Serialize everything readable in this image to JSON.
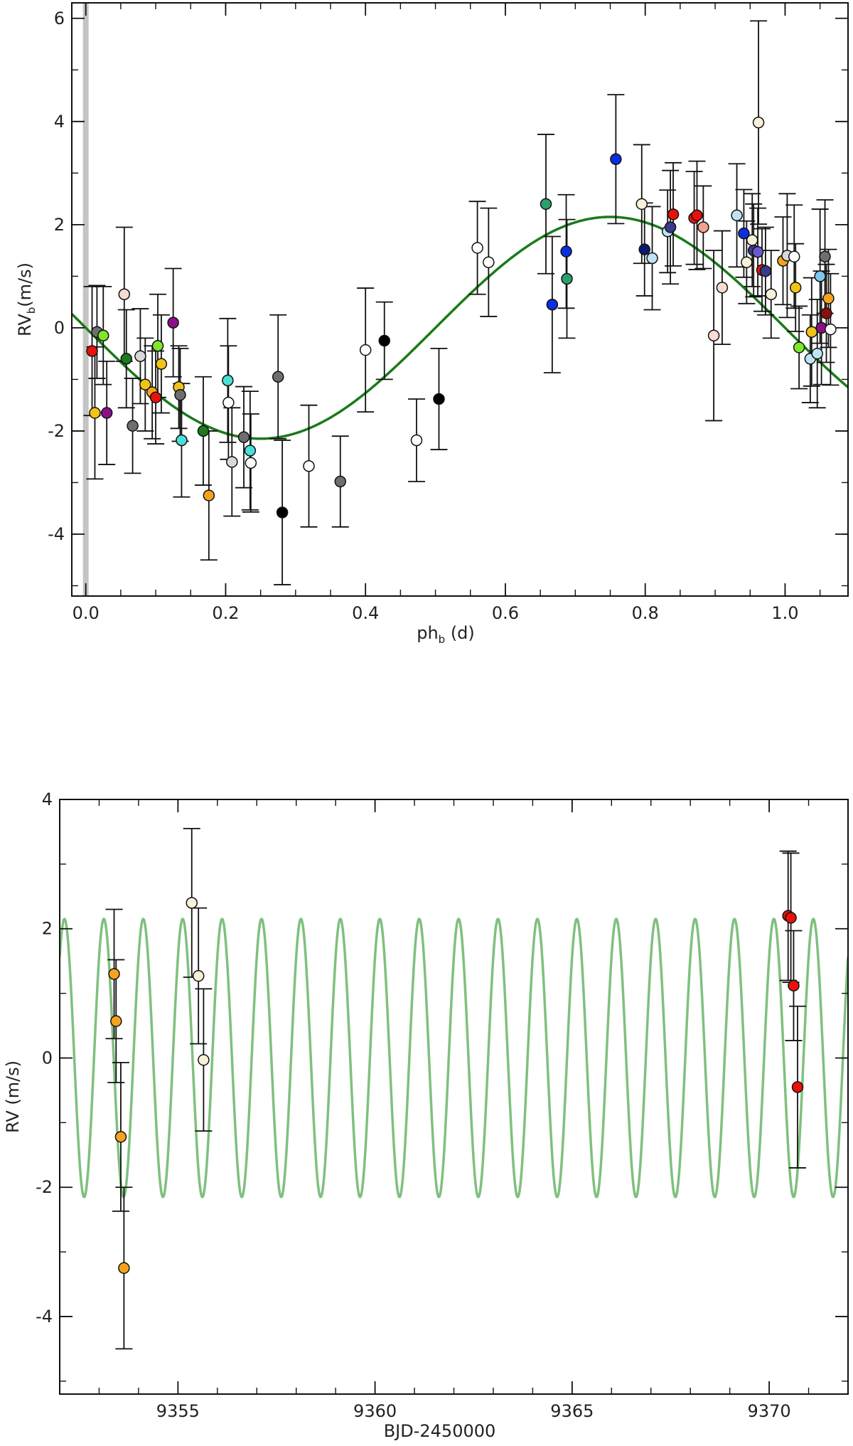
{
  "chart_data": [
    {
      "type": "scatter",
      "ylabel_main": "RV",
      "ylabel_sub": "b",
      "ylabel_unit": "(m/s)",
      "xlabel_main": "ph",
      "xlabel_sub": "b",
      "xlabel_unit": " (d)",
      "xlim": [
        -0.02,
        1.09
      ],
      "ylim": [
        -5.2,
        6.3
      ],
      "xticks": [
        0.0,
        0.2,
        0.4,
        0.6,
        0.8,
        1.0
      ],
      "xtick_labels": [
        "0.0",
        "0.2",
        "0.4",
        "0.6",
        "0.8",
        "1.0"
      ],
      "yticks": [
        -4,
        -2,
        0,
        2,
        4,
        6
      ],
      "ytick_labels": [
        "-4",
        "-2",
        "0",
        "2",
        "4",
        "6"
      ],
      "shaded_band_x": 0.0,
      "model": {
        "amplitude": 2.15,
        "period": 1.0,
        "phase_zero": 0.0,
        "color": "#1a7a1a"
      },
      "points": [
        {
          "x": 0.009,
          "y": -0.45,
          "err": 1.25,
          "color": "#e8120b"
        },
        {
          "x": 0.013,
          "y": -1.65,
          "err": 1.28,
          "color": "#f2c418"
        },
        {
          "x": 0.016,
          "y": -0.08,
          "err": 0.9,
          "color": "#6e6e6e"
        },
        {
          "x": 0.025,
          "y": -0.15,
          "err": 0.95,
          "color": "#7fe62a"
        },
        {
          "x": 0.03,
          "y": -1.65,
          "err": 1.0,
          "color": "#8b0f8b"
        },
        {
          "x": 0.055,
          "y": 0.65,
          "err": 1.3,
          "color": "#f8dcd4"
        },
        {
          "x": 0.058,
          "y": -0.6,
          "err": 0.95,
          "color": "#1e7a1e"
        },
        {
          "x": 0.067,
          "y": -1.9,
          "err": 0.92,
          "color": "#6e6e6e"
        },
        {
          "x": 0.078,
          "y": -0.55,
          "err": 0.92,
          "color": "#d8d8d8"
        },
        {
          "x": 0.085,
          "y": -1.1,
          "err": 0.9,
          "color": "#f2c418"
        },
        {
          "x": 0.095,
          "y": -1.25,
          "err": 0.9,
          "color": "#f5a21e"
        },
        {
          "x": 0.1,
          "y": -1.35,
          "err": 0.9,
          "color": "#e8120b"
        },
        {
          "x": 0.103,
          "y": -0.35,
          "err": 1.0,
          "color": "#7fe62a"
        },
        {
          "x": 0.108,
          "y": -0.7,
          "err": 0.95,
          "color": "#f2c418"
        },
        {
          "x": 0.125,
          "y": 0.1,
          "err": 1.05,
          "color": "#8b0f8b"
        },
        {
          "x": 0.133,
          "y": -1.15,
          "err": 0.8,
          "color": "#f2c418"
        },
        {
          "x": 0.135,
          "y": -1.3,
          "err": 0.9,
          "color": "#6e6e6e"
        },
        {
          "x": 0.137,
          "y": -2.18,
          "err": 1.1,
          "color": "#48e0d8"
        },
        {
          "x": 0.168,
          "y": -2.0,
          "err": 1.05,
          "color": "#1e7a1e"
        },
        {
          "x": 0.176,
          "y": -3.25,
          "err": 1.25,
          "color": "#f5a21e"
        },
        {
          "x": 0.203,
          "y": -1.02,
          "err": 1.2,
          "color": "#48e0d8"
        },
        {
          "x": 0.204,
          "y": -1.45,
          "err": 1.1,
          "color": "#ffffff"
        },
        {
          "x": 0.209,
          "y": -2.6,
          "err": 1.05,
          "color": "#d8d8d8"
        },
        {
          "x": 0.226,
          "y": -2.12,
          "err": 0.98,
          "color": "#6e6e6e"
        },
        {
          "x": 0.235,
          "y": -2.38,
          "err": 1.15,
          "color": "#48e0d8"
        },
        {
          "x": 0.236,
          "y": -2.62,
          "err": 0.95,
          "color": "#ffffff"
        },
        {
          "x": 0.275,
          "y": -0.95,
          "err": 1.2,
          "color": "#6e6e6e"
        },
        {
          "x": 0.281,
          "y": -3.58,
          "err": 1.4,
          "color": "#000000"
        },
        {
          "x": 0.319,
          "y": -2.68,
          "err": 1.18,
          "color": "#ffffff"
        },
        {
          "x": 0.364,
          "y": -2.98,
          "err": 0.88,
          "color": "#6e6e6e"
        },
        {
          "x": 0.4,
          "y": -0.43,
          "err": 1.2,
          "color": "#ffffff"
        },
        {
          "x": 0.427,
          "y": -0.25,
          "err": 0.75,
          "color": "#000000"
        },
        {
          "x": 0.473,
          "y": -2.18,
          "err": 0.8,
          "color": "#ffffff"
        },
        {
          "x": 0.505,
          "y": -1.38,
          "err": 0.98,
          "color": "#000000"
        },
        {
          "x": 0.56,
          "y": 1.55,
          "err": 0.9,
          "color": "#ffffff"
        },
        {
          "x": 0.576,
          "y": 1.27,
          "err": 1.05,
          "color": "#ffffff"
        },
        {
          "x": 0.658,
          "y": 2.4,
          "err": 1.35,
          "color": "#2e9e6e"
        },
        {
          "x": 0.667,
          "y": 0.45,
          "err": 1.32,
          "color": "#0a2ee0"
        },
        {
          "x": 0.687,
          "y": 1.48,
          "err": 1.1,
          "color": "#0a2ee0"
        },
        {
          "x": 0.688,
          "y": 0.95,
          "err": 1.15,
          "color": "#2e9e6e"
        },
        {
          "x": 0.758,
          "y": 3.27,
          "err": 1.25,
          "color": "#0a2ee0"
        },
        {
          "x": 0.795,
          "y": 2.4,
          "err": 1.15,
          "color": "#f8f0d8"
        },
        {
          "x": 0.799,
          "y": 1.52,
          "err": 0.9,
          "color": "#0a1a6e"
        },
        {
          "x": 0.81,
          "y": 1.35,
          "err": 1.0,
          "color": "#bfe2f5"
        },
        {
          "x": 0.832,
          "y": 1.87,
          "err": 0.8,
          "color": "#bfe2f5"
        },
        {
          "x": 0.836,
          "y": 1.95,
          "err": 1.1,
          "color": "#3a3a8a"
        },
        {
          "x": 0.84,
          "y": 2.2,
          "err": 1.0,
          "color": "#e8120b"
        },
        {
          "x": 0.87,
          "y": 2.13,
          "err": 0.9,
          "color": "#e8120b"
        },
        {
          "x": 0.874,
          "y": 2.18,
          "err": 1.05,
          "color": "#e8120b"
        },
        {
          "x": 0.883,
          "y": 1.95,
          "err": 0.8,
          "color": "#f5a090"
        },
        {
          "x": 0.898,
          "y": -0.15,
          "err": 1.65,
          "color": "#f8dcd4"
        },
        {
          "x": 0.91,
          "y": 0.78,
          "err": 1.1,
          "color": "#f8dcd4"
        },
        {
          "x": 0.931,
          "y": 2.18,
          "err": 1.0,
          "color": "#bfe2f5"
        },
        {
          "x": 0.941,
          "y": 1.83,
          "err": 0.85,
          "color": "#0a2ee0"
        },
        {
          "x": 0.945,
          "y": 1.27,
          "err": 0.8,
          "color": "#f8f0d8"
        },
        {
          "x": 0.953,
          "y": 1.7,
          "err": 0.9,
          "color": "#f8f0d8"
        },
        {
          "x": 0.955,
          "y": 1.5,
          "err": 0.9,
          "color": "#3a3a8a"
        },
        {
          "x": 0.961,
          "y": 1.47,
          "err": 0.85,
          "color": "#6a5acd"
        },
        {
          "x": 0.962,
          "y": 3.98,
          "err": 1.97,
          "color": "#f8f0d8"
        },
        {
          "x": 0.967,
          "y": 1.12,
          "err": 0.8,
          "color": "#e8120b"
        },
        {
          "x": 0.972,
          "y": 1.1,
          "err": 0.85,
          "color": "#3a3a8a"
        },
        {
          "x": 0.98,
          "y": 0.65,
          "err": 0.85,
          "color": "#f8f0d8"
        },
        {
          "x": 0.997,
          "y": 1.3,
          "err": 0.85,
          "color": "#f5a21e"
        },
        {
          "x": 1.003,
          "y": 1.4,
          "err": 1.2,
          "color": "#d8d8d8"
        },
        {
          "x": 1.013,
          "y": 1.38,
          "err": 1.0,
          "color": "#ffffff"
        },
        {
          "x": 1.015,
          "y": 0.78,
          "err": 0.85,
          "color": "#f2c418"
        },
        {
          "x": 1.02,
          "y": -0.38,
          "err": 0.8,
          "color": "#7fe62a"
        },
        {
          "x": 1.036,
          "y": -0.6,
          "err": 0.85,
          "color": "#bfe2f5"
        },
        {
          "x": 1.038,
          "y": -0.08,
          "err": 1.05,
          "color": "#f2c418"
        },
        {
          "x": 1.046,
          "y": -0.5,
          "err": 1.05,
          "color": "#bfe2f5"
        },
        {
          "x": 1.05,
          "y": 1.0,
          "err": 1.3,
          "color": "#7ec8f0"
        },
        {
          "x": 1.052,
          "y": 0.0,
          "err": 1.1,
          "color": "#8b0f8b"
        },
        {
          "x": 1.057,
          "y": 1.38,
          "err": 1.1,
          "color": "#6e6e6e"
        },
        {
          "x": 1.059,
          "y": 0.28,
          "err": 0.95,
          "color": "#8b0f0b"
        },
        {
          "x": 1.062,
          "y": 0.57,
          "err": 0.95,
          "color": "#f5a21e"
        },
        {
          "x": 1.065,
          "y": -0.03,
          "err": 1.08,
          "color": "#ffffff"
        }
      ]
    },
    {
      "type": "scatter",
      "ylabel_main": "RV (m/s)",
      "xlabel_main": "BJD-2450000",
      "xlim": [
        9352.0,
        9372.0
      ],
      "ylim": [
        -5.2,
        4.0
      ],
      "xticks": [
        9355,
        9360,
        9365,
        9370
      ],
      "xtick_labels": [
        "9355",
        "9360",
        "9365",
        "9370"
      ],
      "yticks": [
        -4,
        -2,
        0,
        2,
        4
      ],
      "ytick_labels": [
        "-4",
        "-2",
        "0",
        "2",
        "4"
      ],
      "model": {
        "amplitude": 2.15,
        "period": 1.0,
        "t_peak": 9352.12,
        "color": "#7fc07f"
      },
      "points": [
        {
          "x": 9353.38,
          "y": 1.3,
          "err": 1.0,
          "color": "#f5a21e"
        },
        {
          "x": 9353.43,
          "y": 0.57,
          "err": 0.95,
          "color": "#f5a21e"
        },
        {
          "x": 9353.55,
          "y": -1.22,
          "err": 1.15,
          "color": "#f5a21e"
        },
        {
          "x": 9353.63,
          "y": -3.25,
          "err": 1.25,
          "color": "#f5a21e"
        },
        {
          "x": 9355.35,
          "y": 2.4,
          "err": 1.15,
          "color": "#f8f0d8"
        },
        {
          "x": 9355.52,
          "y": 1.27,
          "err": 1.05,
          "color": "#f8f0d8"
        },
        {
          "x": 9355.65,
          "y": -0.03,
          "err": 1.1,
          "color": "#f8f0d8"
        },
        {
          "x": 9370.48,
          "y": 2.2,
          "err": 1.0,
          "color": "#e8120b"
        },
        {
          "x": 9370.55,
          "y": 2.17,
          "err": 1.0,
          "color": "#e8120b"
        },
        {
          "x": 9370.62,
          "y": 1.12,
          "err": 0.85,
          "color": "#e8120b"
        },
        {
          "x": 9370.72,
          "y": -0.45,
          "err": 1.25,
          "color": "#e8120b"
        }
      ]
    }
  ]
}
